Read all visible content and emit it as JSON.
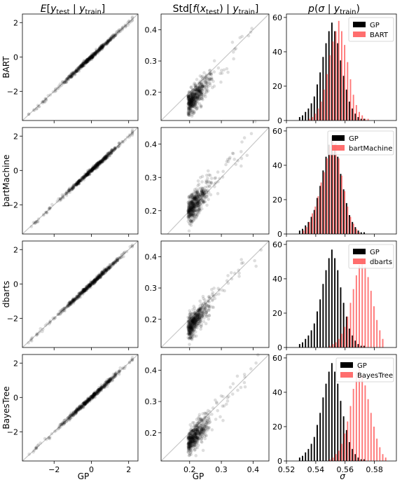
{
  "column_titles": [
    "E[y_test | y_train]",
    "Std[f(x_test) | y_train]",
    "p(σ | y_train)"
  ],
  "row_labels": [
    "BART",
    "bartMachine",
    "dbarts",
    "BayesTree"
  ],
  "x_labels": [
    "GP",
    "GP",
    "σ"
  ],
  "colors": {
    "gp": "#000000",
    "model": "#ff5555",
    "diag": "#c8c8c8",
    "scatter": "#000000"
  },
  "chart_data": [
    {
      "type": "scatter",
      "panel": "mean",
      "x_range": [
        -3.7,
        2.5
      ],
      "y_range": [
        -3.7,
        2.5
      ],
      "xticks": [
        "−2",
        "0",
        "2"
      ],
      "yticks": [
        "−2",
        "0",
        "2"
      ],
      "xtick_values": [
        -2,
        0,
        2
      ],
      "ytick_values": [
        -2,
        0,
        2
      ],
      "points": "approx. 500 points lying close to the diagonal y = x, spanning about −3.4 to 2.2"
    },
    {
      "type": "scatter",
      "panel": "std",
      "x_range": [
        0.11,
        0.45
      ],
      "xticks": [
        "0.2",
        "0.3",
        "0.4"
      ],
      "xtick_values": [
        0.2,
        0.3,
        0.4
      ],
      "rows": [
        {
          "model": "BART",
          "y_range": [
            0.11,
            0.45
          ],
          "yticks": [
            "0.2",
            "0.3",
            "0.4"
          ],
          "ytick_values": [
            0.2,
            0.3,
            0.4
          ]
        },
        {
          "model": "bartMachine",
          "y_range": [
            0.13,
            0.45
          ],
          "yticks": [
            "0.2",
            "0.3",
            "0.4"
          ],
          "ytick_values": [
            0.2,
            0.3,
            0.4
          ]
        },
        {
          "model": "dbarts",
          "y_range": [
            0.11,
            0.45
          ],
          "yticks": [
            "0.2",
            "0.3",
            "0.4"
          ],
          "ytick_values": [
            0.2,
            0.3,
            0.4
          ]
        },
        {
          "model": "BayesTree",
          "y_range": [
            0.11,
            0.45
          ],
          "yticks": [
            "0.2",
            "0.3",
            "0.4"
          ],
          "ytick_values": [
            0.2,
            0.3,
            0.4
          ]
        }
      ]
    },
    {
      "type": "bar",
      "panel": "sigma_histogram",
      "x_range": [
        0.52,
        0.595
      ],
      "y_range": [
        0,
        62
      ],
      "xticks": [
        "0.52",
        "0.54",
        "0.56",
        "0.58"
      ],
      "xtick_values": [
        0.52,
        0.54,
        0.56,
        0.58
      ],
      "yticks": [
        "0",
        "20",
        "40",
        "60"
      ],
      "ytick_values": [
        0,
        20,
        40,
        60
      ],
      "gp_bins": [
        0.529,
        0.531,
        0.533,
        0.535,
        0.537,
        0.539,
        0.541,
        0.543,
        0.545,
        0.547,
        0.549,
        0.551,
        0.553,
        0.555,
        0.557,
        0.559,
        0.561,
        0.563,
        0.565,
        0.567,
        0.569,
        0.571,
        0.573
      ],
      "gp_values": [
        2,
        3,
        5,
        7,
        10,
        14,
        21,
        28,
        37,
        45,
        52,
        57,
        52,
        45,
        35,
        26,
        18,
        11,
        7,
        4,
        2,
        1,
        1
      ],
      "rows": [
        {
          "model": "BART",
          "legend": [
            "GP",
            "BART"
          ],
          "bins": [
            0.535,
            0.537,
            0.539,
            0.541,
            0.543,
            0.545,
            0.547,
            0.549,
            0.551,
            0.553,
            0.555,
            0.557,
            0.559,
            0.561,
            0.563,
            0.565,
            0.567,
            0.569,
            0.571,
            0.573,
            0.575
          ],
          "values": [
            1,
            2,
            4,
            7,
            11,
            18,
            27,
            38,
            46,
            52,
            58,
            52,
            44,
            34,
            24,
            15,
            9,
            5,
            3,
            1,
            1
          ]
        },
        {
          "model": "bartMachine",
          "legend": [
            "GP",
            "bartMachine"
          ],
          "bins": [
            0.531,
            0.533,
            0.535,
            0.537,
            0.539,
            0.541,
            0.543,
            0.545,
            0.547,
            0.549,
            0.551,
            0.553,
            0.555,
            0.557,
            0.559,
            0.561,
            0.563,
            0.565,
            0.567,
            0.569
          ],
          "values": [
            2,
            4,
            7,
            12,
            16,
            22,
            30,
            36,
            44,
            51,
            57,
            53,
            44,
            34,
            25,
            16,
            10,
            6,
            3,
            1
          ]
        },
        {
          "model": "dbarts",
          "legend": [
            "GP",
            "dbarts"
          ],
          "bins": [
            0.549,
            0.551,
            0.553,
            0.555,
            0.557,
            0.559,
            0.561,
            0.563,
            0.565,
            0.567,
            0.569,
            0.571,
            0.573,
            0.575,
            0.577,
            0.579,
            0.581,
            0.583,
            0.585
          ],
          "values": [
            1,
            2,
            3,
            5,
            8,
            12,
            18,
            26,
            34,
            42,
            48,
            52,
            47,
            41,
            33,
            24,
            16,
            10,
            5
          ]
        },
        {
          "model": "BayesTree",
          "legend": [
            "GP",
            "BayesTree"
          ],
          "bins": [
            0.549,
            0.551,
            0.553,
            0.555,
            0.557,
            0.559,
            0.561,
            0.563,
            0.565,
            0.567,
            0.569,
            0.571,
            0.573,
            0.575,
            0.577,
            0.579,
            0.581,
            0.583,
            0.585,
            0.587
          ],
          "values": [
            1,
            2,
            4,
            6,
            10,
            16,
            23,
            32,
            42,
            52,
            55,
            50,
            44,
            36,
            28,
            20,
            13,
            8,
            4,
            2
          ]
        }
      ]
    }
  ]
}
